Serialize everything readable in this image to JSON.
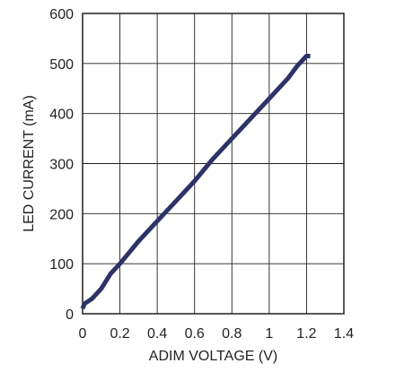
{
  "chart_data": {
    "type": "line",
    "title": "",
    "xlabel": "ADIM VOLTAGE (V)",
    "ylabel": "LED CURRENT (mA)",
    "xlim": [
      0,
      1.4
    ],
    "ylim": [
      0,
      600
    ],
    "xticks": [
      0,
      0.2,
      0.4,
      0.6,
      0.8,
      1,
      1.2,
      1.4
    ],
    "yticks": [
      0,
      100,
      200,
      300,
      400,
      500,
      600
    ],
    "xtick_labels": [
      "0",
      "0.2",
      "0.4",
      "0.6",
      "0.8",
      "1",
      "1.2",
      "1.4"
    ],
    "ytick_labels": [
      "0",
      "100",
      "200",
      "300",
      "400",
      "500",
      "600"
    ],
    "grid": true,
    "series": [
      {
        "color": "#2e3367",
        "x": [
          0,
          0.01,
          0.05,
          0.1,
          0.15,
          0.2,
          0.3,
          0.4,
          0.5,
          0.6,
          0.7,
          0.8,
          0.9,
          1.0,
          1.1,
          1.15,
          1.2,
          1.22
        ],
        "y": [
          10,
          20,
          30,
          50,
          80,
          100,
          145,
          185,
          225,
          265,
          310,
          350,
          390,
          430,
          470,
          495,
          515,
          515
        ]
      }
    ]
  }
}
